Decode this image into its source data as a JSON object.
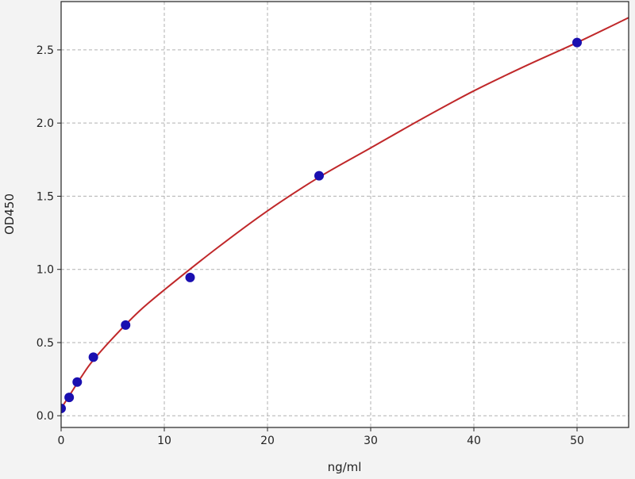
{
  "chart_data": {
    "type": "scatter",
    "title": "",
    "xlabel": "ng/ml",
    "ylabel": "OD450",
    "xlim": [
      0,
      55
    ],
    "ylim": [
      -0.08,
      2.83
    ],
    "xticks": [
      0,
      10,
      20,
      30,
      40,
      50
    ],
    "yticks": [
      0.0,
      0.5,
      1.0,
      1.5,
      2.0,
      2.5
    ],
    "xtick_labels": [
      "0",
      "10",
      "20",
      "30",
      "40",
      "50"
    ],
    "ytick_labels": [
      "0.0",
      "0.5",
      "1.0",
      "1.5",
      "2.0",
      "2.5"
    ],
    "grid": true,
    "points": {
      "x": [
        0,
        0.78,
        1.56,
        3.125,
        6.25,
        12.5,
        25,
        50
      ],
      "y": [
        0.05,
        0.125,
        0.23,
        0.4,
        0.62,
        0.945,
        1.64,
        2.55
      ],
      "color": "#1a0fb0"
    },
    "fit_curve": {
      "x": [
        0,
        1,
        2,
        3,
        5,
        7.5,
        10,
        15,
        20,
        25,
        30,
        35,
        40,
        45,
        50,
        55
      ],
      "y": [
        0.05,
        0.16,
        0.27,
        0.37,
        0.53,
        0.71,
        0.86,
        1.14,
        1.4,
        1.63,
        1.83,
        2.03,
        2.22,
        2.39,
        2.55,
        2.72
      ],
      "color": "#c0282a"
    }
  }
}
